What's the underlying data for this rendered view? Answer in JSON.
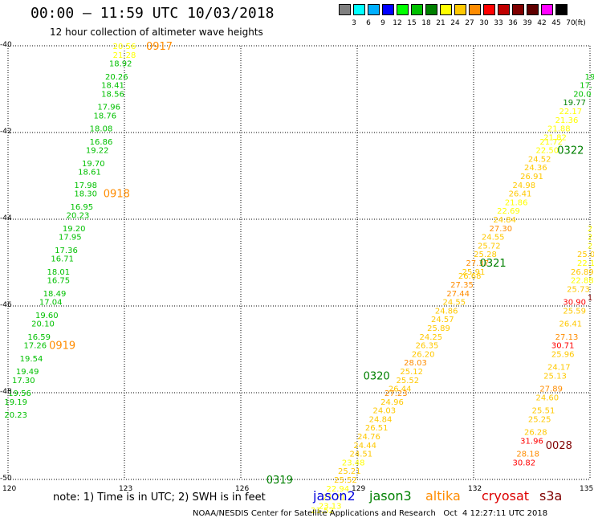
{
  "header": {
    "title": "00:00 – 11:59 UTC 10/03/2018",
    "subtitle": "12 hour collection of altimeter wave heights"
  },
  "colorbar": {
    "unit": "(ft)",
    "bins": [
      {
        "label": "3",
        "color": "#808080"
      },
      {
        "label": "6",
        "color": "#00ffff"
      },
      {
        "label": "9",
        "color": "#00b0ff"
      },
      {
        "label": "12",
        "color": "#0000ff"
      },
      {
        "label": "15",
        "color": "#00ff00"
      },
      {
        "label": "18",
        "color": "#00c000"
      },
      {
        "label": "21",
        "color": "#008000"
      },
      {
        "label": "24",
        "color": "#ffff00"
      },
      {
        "label": "27",
        "color": "#ffc800"
      },
      {
        "label": "30",
        "color": "#ff8c00"
      },
      {
        "label": "33",
        "color": "#ff0000"
      },
      {
        "label": "36",
        "color": "#c00000"
      },
      {
        "label": "39",
        "color": "#800000"
      },
      {
        "label": "42",
        "color": "#600000"
      },
      {
        "label": "45",
        "color": "#ff00ff"
      },
      {
        "label": "70",
        "color": "#000000"
      }
    ]
  },
  "map": {
    "lat_labels": [
      "-40",
      "-42",
      "-44",
      "-46",
      "-48",
      "-50"
    ],
    "lon_labels": [
      "120",
      "123",
      "126",
      "129",
      "132",
      "135"
    ]
  },
  "note": "note: 1) Time is in UTC; 2) SWH is in feet",
  "satellites": [
    {
      "name": "jason2",
      "color": "#0000dd"
    },
    {
      "name": "jason3",
      "color": "#008000"
    },
    {
      "name": "altika",
      "color": "#ff8c00"
    },
    {
      "name": "cryosat",
      "color": "#dd0000"
    },
    {
      "name": "s3a",
      "color": "#800000"
    }
  ],
  "footer": "NOAA/NESDIS Center for Satellite Applications and Research   Oct  4 12:27:11 UTC 2018",
  "track_labels": [
    {
      "text": "0917",
      "lat": -40.0,
      "lon": 123.9,
      "color": "#ff8c00"
    },
    {
      "text": "0918",
      "lat": -43.4,
      "lon": 122.8,
      "color": "#ff8c00"
    },
    {
      "text": "0919",
      "lat": -46.9,
      "lon": 121.4,
      "color": "#ff8c00"
    },
    {
      "text": "0322",
      "lat": -42.4,
      "lon": 134.5,
      "color": "#008000"
    },
    {
      "text": "0321",
      "lat": -45.0,
      "lon": 132.5,
      "color": "#008000"
    },
    {
      "text": "0320",
      "lat": -47.6,
      "lon": 129.5,
      "color": "#008000"
    },
    {
      "text": "0319",
      "lat": -50.0,
      "lon": 127.0,
      "color": "#008000"
    },
    {
      "text": "0028",
      "lat": -49.2,
      "lon": 134.2,
      "color": "#800000"
    }
  ],
  "tracks": [
    {
      "name": "track-west",
      "points": [
        {
          "value": "20.56",
          "lat": -40.0,
          "lon": 123.0,
          "color": "#ffff00"
        },
        {
          "value": "21.28",
          "lat": -40.2,
          "lon": 123.0,
          "color": "#ffff00"
        },
        {
          "value": "18.92",
          "lat": -40.4,
          "lon": 122.9,
          "color": "#00c000"
        },
        {
          "value": "20.26",
          "lat": -40.7,
          "lon": 122.8,
          "color": "#00c000"
        },
        {
          "value": "18.41",
          "lat": -40.9,
          "lon": 122.7,
          "color": "#00c000"
        },
        {
          "value": "18.56",
          "lat": -41.1,
          "lon": 122.7,
          "color": "#00c000"
        },
        {
          "value": "17.96",
          "lat": -41.4,
          "lon": 122.6,
          "color": "#00c000"
        },
        {
          "value": "18.76",
          "lat": -41.6,
          "lon": 122.5,
          "color": "#00c000"
        },
        {
          "value": "18.08",
          "lat": -41.9,
          "lon": 122.4,
          "color": "#00c000"
        },
        {
          "value": "16.86",
          "lat": -42.2,
          "lon": 122.4,
          "color": "#00c000"
        },
        {
          "value": "19.22",
          "lat": -42.4,
          "lon": 122.3,
          "color": "#00c000"
        },
        {
          "value": "19.70",
          "lat": -42.7,
          "lon": 122.2,
          "color": "#00c000"
        },
        {
          "value": "18.61",
          "lat": -42.9,
          "lon": 122.1,
          "color": "#00c000"
        },
        {
          "value": "17.98",
          "lat": -43.2,
          "lon": 122.0,
          "color": "#00c000"
        },
        {
          "value": "18.30",
          "lat": -43.4,
          "lon": 122.0,
          "color": "#00c000"
        },
        {
          "value": "16.95",
          "lat": -43.7,
          "lon": 121.9,
          "color": "#00c000"
        },
        {
          "value": "20.23",
          "lat": -43.9,
          "lon": 121.8,
          "color": "#00c000"
        },
        {
          "value": "19.20",
          "lat": -44.2,
          "lon": 121.7,
          "color": "#00c000"
        },
        {
          "value": "17.95",
          "lat": -44.4,
          "lon": 121.6,
          "color": "#00c000"
        },
        {
          "value": "17.36",
          "lat": -44.7,
          "lon": 121.5,
          "color": "#00c000"
        },
        {
          "value": "16.71",
          "lat": -44.9,
          "lon": 121.4,
          "color": "#00c000"
        },
        {
          "value": "18.01",
          "lat": -45.2,
          "lon": 121.3,
          "color": "#00c000"
        },
        {
          "value": "16.75",
          "lat": -45.4,
          "lon": 121.3,
          "color": "#00c000"
        },
        {
          "value": "18.49",
          "lat": -45.7,
          "lon": 121.2,
          "color": "#00c000"
        },
        {
          "value": "17.04",
          "lat": -45.9,
          "lon": 121.1,
          "color": "#00c000"
        },
        {
          "value": "19.60",
          "lat": -46.2,
          "lon": 121.0,
          "color": "#00c000"
        },
        {
          "value": "20.10",
          "lat": -46.4,
          "lon": 120.9,
          "color": "#00c000"
        },
        {
          "value": "16.59",
          "lat": -46.7,
          "lon": 120.8,
          "color": "#00c000"
        },
        {
          "value": "17.26",
          "lat": -46.9,
          "lon": 120.7,
          "color": "#00c000"
        },
        {
          "value": "19.54",
          "lat": -47.2,
          "lon": 120.6,
          "color": "#00c000"
        },
        {
          "value": "19.49",
          "lat": -47.5,
          "lon": 120.5,
          "color": "#00c000"
        },
        {
          "value": "17.30",
          "lat": -47.7,
          "lon": 120.4,
          "color": "#00c000"
        },
        {
          "value": "19.56",
          "lat": -48.0,
          "lon": 120.3,
          "color": "#00c000"
        },
        {
          "value": "19.19",
          "lat": -48.2,
          "lon": 120.2,
          "color": "#00c000"
        },
        {
          "value": "20.23",
          "lat": -48.5,
          "lon": 120.2,
          "color": "#00c000"
        }
      ]
    },
    {
      "name": "track-middle",
      "points": [
        {
          "value": "19",
          "lat": -40.7,
          "lon": 135.0,
          "color": "#00c000"
        },
        {
          "value": "17.",
          "lat": -40.9,
          "lon": 134.9,
          "color": "#00c000"
        },
        {
          "value": "20.0",
          "lat": -41.1,
          "lon": 134.8,
          "color": "#00c000"
        },
        {
          "value": "19.77",
          "lat": -41.3,
          "lon": 134.6,
          "color": "#008000"
        },
        {
          "value": "22.17",
          "lat": -41.5,
          "lon": 134.5,
          "color": "#ffff00"
        },
        {
          "value": "21.36",
          "lat": -41.7,
          "lon": 134.4,
          "color": "#ffff00"
        },
        {
          "value": "21.88",
          "lat": -41.9,
          "lon": 134.2,
          "color": "#ffff00"
        },
        {
          "value": "21.82",
          "lat": -42.1,
          "lon": 134.1,
          "color": "#ffff00"
        },
        {
          "value": "21.72",
          "lat": -42.2,
          "lon": 134.0,
          "color": "#ffff00"
        },
        {
          "value": "22.50",
          "lat": -42.4,
          "lon": 133.9,
          "color": "#ffff00"
        },
        {
          "value": "24.52",
          "lat": -42.6,
          "lon": 133.7,
          "color": "#ffc800"
        },
        {
          "value": "24.36",
          "lat": -42.8,
          "lon": 133.6,
          "color": "#ffc800"
        },
        {
          "value": "26.91",
          "lat": -43.0,
          "lon": 133.5,
          "color": "#ffc800"
        },
        {
          "value": "24.98",
          "lat": -43.2,
          "lon": 133.3,
          "color": "#ffc800"
        },
        {
          "value": "26.41",
          "lat": -43.4,
          "lon": 133.2,
          "color": "#ffc800"
        },
        {
          "value": "21.86",
          "lat": -43.6,
          "lon": 133.1,
          "color": "#ffff00"
        },
        {
          "value": "22.69",
          "lat": -43.8,
          "lon": 132.9,
          "color": "#ffff00"
        },
        {
          "value": "24.84",
          "lat": -44.0,
          "lon": 132.8,
          "color": "#ffc800"
        },
        {
          "value": "27.30",
          "lat": -44.2,
          "lon": 132.7,
          "color": "#ff8c00"
        },
        {
          "value": "24.55",
          "lat": -44.4,
          "lon": 132.5,
          "color": "#ffc800"
        },
        {
          "value": "25.72",
          "lat": -44.6,
          "lon": 132.4,
          "color": "#ffc800"
        },
        {
          "value": "25.28",
          "lat": -44.8,
          "lon": 132.3,
          "color": "#ffc800"
        },
        {
          "value": "27.37",
          "lat": -45.0,
          "lon": 132.1,
          "color": "#ff8c00"
        },
        {
          "value": "25.91",
          "lat": -45.2,
          "lon": 132.0,
          "color": "#ffc800"
        },
        {
          "value": "26.68",
          "lat": -45.3,
          "lon": 131.9,
          "color": "#ffc800"
        },
        {
          "value": "27.35",
          "lat": -45.5,
          "lon": 131.7,
          "color": "#ff8c00"
        },
        {
          "value": "27.44",
          "lat": -45.7,
          "lon": 131.6,
          "color": "#ff8c00"
        },
        {
          "value": "24.55",
          "lat": -45.9,
          "lon": 131.5,
          "color": "#ffc800"
        },
        {
          "value": "24.86",
          "lat": -46.1,
          "lon": 131.3,
          "color": "#ffc800"
        },
        {
          "value": "24.57",
          "lat": -46.3,
          "lon": 131.2,
          "color": "#ffc800"
        },
        {
          "value": "25.89",
          "lat": -46.5,
          "lon": 131.1,
          "color": "#ffc800"
        },
        {
          "value": "24.25",
          "lat": -46.7,
          "lon": 130.9,
          "color": "#ffc800"
        },
        {
          "value": "26.35",
          "lat": -46.9,
          "lon": 130.8,
          "color": "#ffc800"
        },
        {
          "value": "26.20",
          "lat": -47.1,
          "lon": 130.7,
          "color": "#ffc800"
        },
        {
          "value": "28.03",
          "lat": -47.3,
          "lon": 130.5,
          "color": "#ff8c00"
        },
        {
          "value": "25.12",
          "lat": -47.5,
          "lon": 130.4,
          "color": "#ffc800"
        },
        {
          "value": "25.52",
          "lat": -47.7,
          "lon": 130.3,
          "color": "#ffc800"
        },
        {
          "value": "26.44",
          "lat": -47.9,
          "lon": 130.1,
          "color": "#ffc800"
        },
        {
          "value": "27.23",
          "lat": -48.0,
          "lon": 130.0,
          "color": "#ff8c00"
        },
        {
          "value": "24.96",
          "lat": -48.2,
          "lon": 129.9,
          "color": "#ffc800"
        },
        {
          "value": "24.03",
          "lat": -48.4,
          "lon": 129.7,
          "color": "#ffc800"
        },
        {
          "value": "24.84",
          "lat": -48.6,
          "lon": 129.6,
          "color": "#ffc800"
        },
        {
          "value": "26.51",
          "lat": -48.8,
          "lon": 129.5,
          "color": "#ffc800"
        },
        {
          "value": "24.76",
          "lat": -49.0,
          "lon": 129.3,
          "color": "#ffc800"
        },
        {
          "value": "24.44",
          "lat": -49.2,
          "lon": 129.2,
          "color": "#ffc800"
        },
        {
          "value": "24.51",
          "lat": -49.4,
          "lon": 129.1,
          "color": "#ffc800"
        },
        {
          "value": "23.48",
          "lat": -49.6,
          "lon": 128.9,
          "color": "#ffff00"
        },
        {
          "value": "25.21",
          "lat": -49.8,
          "lon": 128.8,
          "color": "#ffc800"
        },
        {
          "value": "25.52",
          "lat": -50.0,
          "lon": 128.7,
          "color": "#ffc800"
        },
        {
          "value": "22.94",
          "lat": -50.2,
          "lon": 128.5,
          "color": "#ffff00"
        },
        {
          "value": "21.71",
          "lat": -50.4,
          "lon": 128.4,
          "color": "#ffff00"
        },
        {
          "value": "23.13",
          "lat": -50.6,
          "lon": 128.3,
          "color": "#ffff00"
        },
        {
          "value": "21.52",
          "lat": -50.7,
          "lon": 128.1,
          "color": "#ffff00"
        }
      ]
    },
    {
      "name": "track-east",
      "points": [
        {
          "value": "2",
          "lat": -44.2,
          "lon": 135.0,
          "color": "#ffff00"
        },
        {
          "value": "2",
          "lat": -44.4,
          "lon": 135.0,
          "color": "#ffff00"
        },
        {
          "value": "2",
          "lat": -44.6,
          "lon": 135.0,
          "color": "#ffff00"
        },
        {
          "value": "25.0",
          "lat": -44.8,
          "lon": 134.9,
          "color": "#ffc800"
        },
        {
          "value": "22.1",
          "lat": -45.0,
          "lon": 134.9,
          "color": "#ffff00"
        },
        {
          "value": "26.89",
          "lat": -45.2,
          "lon": 134.8,
          "color": "#ffc800"
        },
        {
          "value": "22.88",
          "lat": -45.4,
          "lon": 134.8,
          "color": "#ffff00"
        },
        {
          "value": "25.73",
          "lat": -45.6,
          "lon": 134.7,
          "color": "#ffc800"
        },
        {
          "value": "30.90",
          "lat": -45.9,
          "lon": 134.6,
          "color": "#ff0000"
        },
        {
          "value": "25.59",
          "lat": -46.1,
          "lon": 134.6,
          "color": "#ffc800"
        },
        {
          "value": "26.41",
          "lat": -46.4,
          "lon": 134.5,
          "color": "#ffc800"
        },
        {
          "value": "27.13",
          "lat": -46.7,
          "lon": 134.4,
          "color": "#ff8c00"
        },
        {
          "value": "30.71",
          "lat": -46.9,
          "lon": 134.3,
          "color": "#ff0000"
        },
        {
          "value": "25.96",
          "lat": -47.1,
          "lon": 134.3,
          "color": "#ffc800"
        },
        {
          "value": "24.17",
          "lat": -47.4,
          "lon": 134.2,
          "color": "#ffc800"
        },
        {
          "value": "25.13",
          "lat": -47.6,
          "lon": 134.1,
          "color": "#ffc800"
        },
        {
          "value": "27.89",
          "lat": -47.9,
          "lon": 134.0,
          "color": "#ff8c00"
        },
        {
          "value": "24.60",
          "lat": -48.1,
          "lon": 133.9,
          "color": "#ffc800"
        },
        {
          "value": "25.51",
          "lat": -48.4,
          "lon": 133.8,
          "color": "#ffc800"
        },
        {
          "value": "25.25",
          "lat": -48.6,
          "lon": 133.7,
          "color": "#ffc800"
        },
        {
          "value": "26.28",
          "lat": -48.9,
          "lon": 133.6,
          "color": "#ffc800"
        },
        {
          "value": "31.96",
          "lat": -49.1,
          "lon": 133.5,
          "color": "#ff0000"
        },
        {
          "value": "28.18",
          "lat": -49.4,
          "lon": 133.4,
          "color": "#ff8c00"
        },
        {
          "value": "30.82",
          "lat": -49.6,
          "lon": 133.3,
          "color": "#ff0000"
        }
      ]
    },
    {
      "name": "track-edge",
      "points": [
        {
          "value": "1",
          "lat": -45.8,
          "lon": 135.0,
          "color": "#800000"
        }
      ]
    }
  ]
}
